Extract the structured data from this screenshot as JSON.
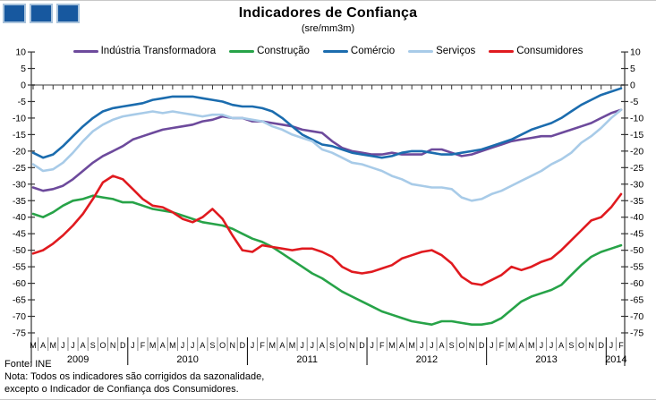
{
  "title": "Indicadores de Confiança",
  "subtitle": "(sre/mm3m)",
  "logo": {
    "square_color": "#17589f",
    "square_border_color": "#a9c3dc",
    "square_count": 3
  },
  "footer": {
    "source": "Fonte: INE",
    "note_line1": "Nota: Todos os indicadores são corrigidos da sazonalidade,",
    "note_line2": "excepto o Indicador de Confiança dos Consumidores."
  },
  "axis_colors": {
    "axis": "#333333",
    "zero_line": "#8f8f8f",
    "month_separator": "#888888",
    "year_separator": "#000000"
  },
  "chart_data": {
    "type": "line",
    "title": "Indicadores de Confiança",
    "subtitle": "(sre/mm3m)",
    "xlabel": "",
    "ylabel": "",
    "ylim": [
      -75,
      10
    ],
    "ytick_step": 5,
    "grid": "zero-line-only",
    "legend_position": "top",
    "x_months": [
      "M",
      "A",
      "M",
      "J",
      "J",
      "A",
      "S",
      "O",
      "N",
      "D",
      "J",
      "F",
      "M",
      "A",
      "M",
      "J",
      "J",
      "A",
      "S",
      "O",
      "N",
      "D",
      "J",
      "F",
      "M",
      "A",
      "M",
      "J",
      "J",
      "A",
      "S",
      "O",
      "N",
      "D",
      "J",
      "F",
      "M",
      "A",
      "M",
      "J",
      "J",
      "A",
      "S",
      "O",
      "N",
      "D",
      "J",
      "F",
      "M",
      "A",
      "M",
      "J",
      "J",
      "A",
      "S",
      "O",
      "N",
      "D",
      "J",
      "F"
    ],
    "years": [
      {
        "label": "2009",
        "from": 0,
        "to": 9
      },
      {
        "label": "2010",
        "from": 10,
        "to": 21
      },
      {
        "label": "2011",
        "from": 22,
        "to": 33
      },
      {
        "label": "2012",
        "from": 34,
        "to": 45
      },
      {
        "label": "2013",
        "from": 46,
        "to": 57
      },
      {
        "label": "2014",
        "from": 58,
        "to": 59
      }
    ],
    "series": [
      {
        "name": "Indústria Transformadora",
        "color": "#6d4a9c",
        "values": [
          -31,
          -32,
          -31.5,
          -30.5,
          -28.5,
          -26,
          -23.5,
          -21.5,
          -20,
          -18.5,
          -16.5,
          -15.5,
          -14.5,
          -13.5,
          -13,
          -12.5,
          -12,
          -11,
          -10.5,
          -9.5,
          -10,
          -10,
          -11,
          -11,
          -11.5,
          -12,
          -12.5,
          -13.5,
          -14,
          -14.5,
          -17,
          -19,
          -20,
          -20.5,
          -21,
          -21,
          -20.5,
          -21,
          -21,
          -21,
          -19.5,
          -19.5,
          -20.5,
          -21.5,
          -21,
          -20,
          -19,
          -18,
          -17,
          -16.5,
          -16,
          -15.5,
          -15.5,
          -14.5,
          -13.5,
          -12.5,
          -11.5,
          -10,
          -8.5,
          -7.5
        ]
      },
      {
        "name": "Construção",
        "color": "#27a348",
        "values": [
          -39,
          -40,
          -38.5,
          -36.5,
          -35,
          -34.5,
          -33.5,
          -34,
          -34.5,
          -35.5,
          -35.5,
          -36.5,
          -37.5,
          -38,
          -38.5,
          -39.5,
          -40.5,
          -41.5,
          -42,
          -42.5,
          -43.5,
          -45,
          -46.5,
          -47.5,
          -49,
          -51,
          -53,
          -55,
          -57,
          -58.5,
          -60.5,
          -62.5,
          -64,
          -65.5,
          -67,
          -68.5,
          -69.5,
          -70.5,
          -71.5,
          -72,
          -72.5,
          -71.5,
          -71.5,
          -72,
          -72.5,
          -72.5,
          -72,
          -70.5,
          -68,
          -65.5,
          -64,
          -63,
          -62,
          -60.5,
          -57.5,
          -54.5,
          -52,
          -50.5,
          -49.5,
          -48.5
        ]
      },
      {
        "name": "Comércio",
        "color": "#1b6cae",
        "values": [
          -20.5,
          -22,
          -21,
          -18.5,
          -15.5,
          -12.5,
          -10,
          -8,
          -7,
          -6.5,
          -6,
          -5.5,
          -4.5,
          -4,
          -3.5,
          -3.5,
          -3.5,
          -4,
          -4.5,
          -5,
          -6,
          -6.5,
          -6.5,
          -7,
          -8,
          -10,
          -12.5,
          -15,
          -16.5,
          -18,
          -18.5,
          -19.5,
          -20.5,
          -21,
          -21.5,
          -22,
          -21.5,
          -20.5,
          -20,
          -20,
          -20.5,
          -21,
          -21,
          -20.5,
          -20,
          -19.5,
          -18.5,
          -17.5,
          -16.5,
          -15,
          -13.5,
          -12.5,
          -11.5,
          -10,
          -8,
          -6,
          -4.5,
          -3,
          -2,
          -1
        ]
      },
      {
        "name": "Serviços",
        "color": "#a8cbe8",
        "values": [
          -24,
          -26,
          -25.5,
          -23.5,
          -20.5,
          -17,
          -14,
          -12,
          -10.5,
          -9.5,
          -9,
          -8.5,
          -8,
          -8.5,
          -8,
          -8.5,
          -9,
          -9.5,
          -9,
          -9,
          -10,
          -10,
          -10.5,
          -11,
          -12.5,
          -13.5,
          -15,
          -16,
          -17,
          -19.5,
          -20.5,
          -22,
          -23.5,
          -24,
          -25,
          -26,
          -27.5,
          -28.5,
          -30,
          -30.5,
          -31,
          -31,
          -31.5,
          -34,
          -35,
          -34.5,
          -33,
          -32,
          -30.5,
          -29,
          -27.5,
          -26,
          -24,
          -22.5,
          -20.5,
          -17.5,
          -15.5,
          -13,
          -10,
          -7.5
        ]
      },
      {
        "name": "Consumidores",
        "color": "#e01a1f",
        "values": [
          -51,
          -50,
          -48,
          -45.5,
          -42.5,
          -39,
          -34.5,
          -29.5,
          -27.5,
          -28.5,
          -31.5,
          -34.5,
          -36.5,
          -37,
          -38.5,
          -40.5,
          -41.5,
          -40,
          -37.5,
          -40.5,
          -45.5,
          -50,
          -50.5,
          -48.5,
          -49,
          -49.5,
          -50,
          -49.5,
          -49.5,
          -50.5,
          -52,
          -55,
          -56.5,
          -57,
          -56.5,
          -55.5,
          -54.5,
          -52.5,
          -51.5,
          -50.5,
          -50,
          -51.5,
          -54,
          -58,
          -60,
          -60.5,
          -59,
          -57.5,
          -55,
          -56,
          -55,
          -53.5,
          -52.5,
          -50,
          -47,
          -44,
          -41,
          -40,
          -37,
          -33
        ]
      }
    ]
  }
}
